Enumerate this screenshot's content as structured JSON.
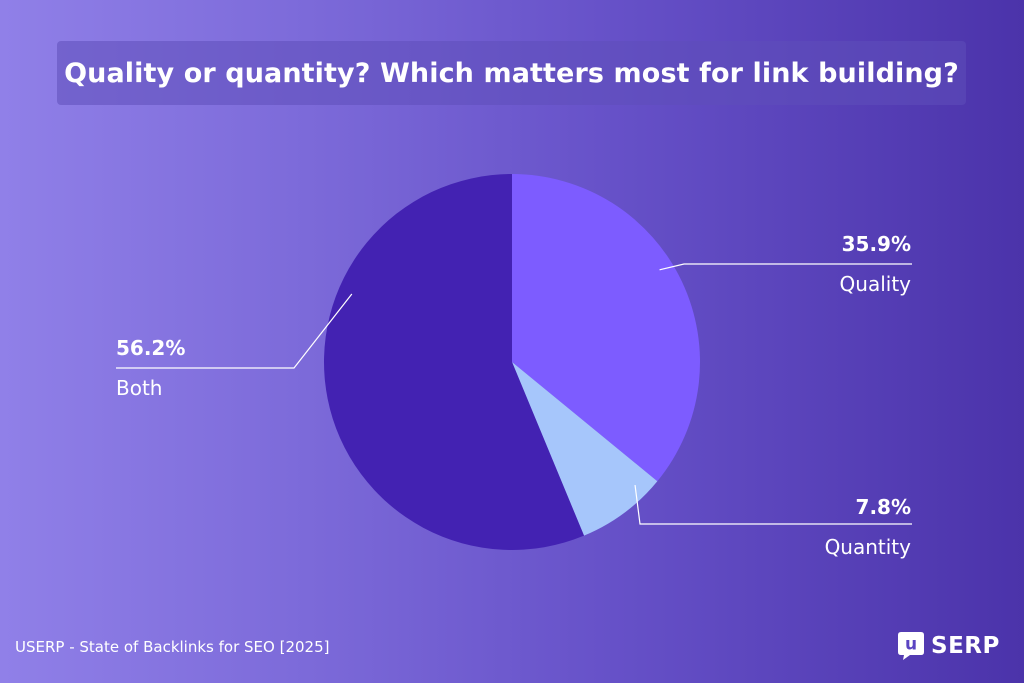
{
  "chart_data": {
    "type": "pie",
    "title": "Quality or quantity? Which matters most for link building?",
    "slices": [
      {
        "label": "Quality",
        "value": 35.9,
        "display": "35.9%",
        "color": "#7d5cff"
      },
      {
        "label": "Quantity",
        "value": 7.8,
        "display": "7.8%",
        "color": "#a6c6fb"
      },
      {
        "label": "Both",
        "value": 56.2,
        "display": "56.2%",
        "color": "#4322b2"
      }
    ],
    "start": "top (12 o'clock)",
    "direction": "clockwise"
  },
  "footer": {
    "source": "USERP - State of Backlinks for SEO [2025]"
  },
  "brand": {
    "icon_letter": "u",
    "name": "SERP"
  },
  "colors": {
    "label_text": "#ffffff",
    "leader_line": "#ffffff"
  }
}
